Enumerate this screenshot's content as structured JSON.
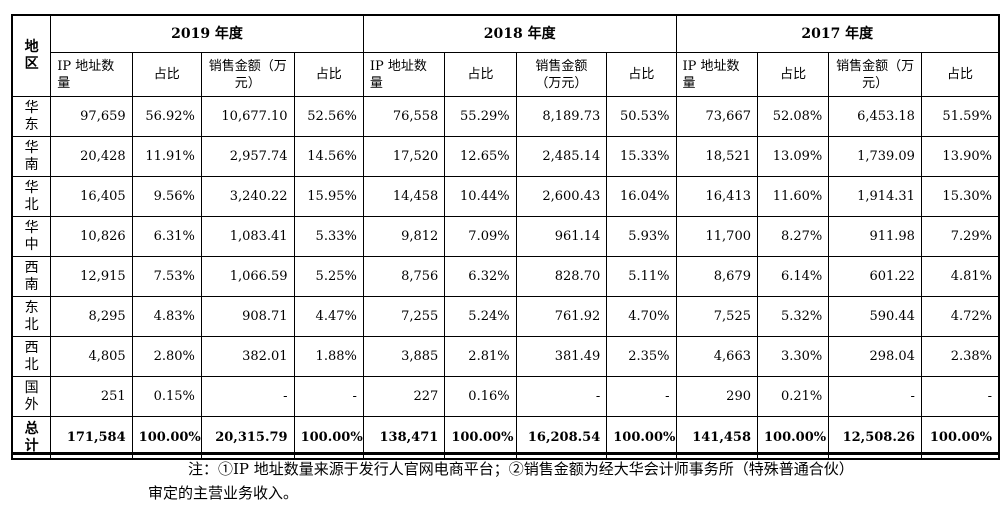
{
  "header": {
    "region_label": "地区",
    "years": [
      "2019 年度",
      "2018 年度",
      "2017 年度"
    ],
    "sub_cols": [
      "IP 地址数量",
      "占比",
      "销售金额（万元）",
      "占比"
    ]
  },
  "rows": [
    {
      "region": "华东",
      "values": [
        "97,659",
        "56.92%",
        "10,677.10",
        "52.56%",
        "76,558",
        "55.29%",
        "8,189.73",
        "50.53%",
        "73,667",
        "52.08%",
        "6,453.18",
        "51.59%"
      ]
    },
    {
      "region": "华南",
      "values": [
        "20,428",
        "11.91%",
        "2,957.74",
        "14.56%",
        "17,520",
        "12.65%",
        "2,485.14",
        "15.33%",
        "18,521",
        "13.09%",
        "1,739.09",
        "13.90%"
      ]
    },
    {
      "region": "华北",
      "values": [
        "16,405",
        "9.56%",
        "3,240.22",
        "15.95%",
        "14,458",
        "10.44%",
        "2,600.43",
        "16.04%",
        "16,413",
        "11.60%",
        "1,914.31",
        "15.30%"
      ]
    },
    {
      "region": "华中",
      "values": [
        "10,826",
        "6.31%",
        "1,083.41",
        "5.33%",
        "9,812",
        "7.09%",
        "961.14",
        "5.93%",
        "11,700",
        "8.27%",
        "911.98",
        "7.29%"
      ]
    },
    {
      "region": "西南",
      "values": [
        "12,915",
        "7.53%",
        "1,066.59",
        "5.25%",
        "8,756",
        "6.32%",
        "828.70",
        "5.11%",
        "8,679",
        "6.14%",
        "601.22",
        "4.81%"
      ]
    },
    {
      "region": "东北",
      "values": [
        "8,295",
        "4.83%",
        "908.71",
        "4.47%",
        "7,255",
        "5.24%",
        "761.92",
        "4.70%",
        "7,525",
        "5.32%",
        "590.44",
        "4.72%"
      ]
    },
    {
      "region": "西北",
      "values": [
        "4,805",
        "2.80%",
        "382.01",
        "1.88%",
        "3,885",
        "2.81%",
        "381.49",
        "2.35%",
        "4,663",
        "3.30%",
        "298.04",
        "2.38%"
      ]
    },
    {
      "region": "国外",
      "values": [
        "251",
        "0.15%",
        "-",
        "-",
        "227",
        "0.16%",
        "-",
        "-",
        "290",
        "0.21%",
        "-",
        "-"
      ]
    }
  ],
  "total": {
    "region": "总计",
    "values": [
      "171,584",
      "100.00%",
      "20,315.79",
      "100.00%",
      "138,471",
      "100.00%",
      "16,208.54",
      "100.00%",
      "141,458",
      "100.00%",
      "12,508.26",
      "100.00%"
    ]
  },
  "note": "注：①IP 地址数量来源于发行人官网电商平台；②销售金额为经大华会计师事务所（特殊普通合伙）审定的主营业务收入。"
}
